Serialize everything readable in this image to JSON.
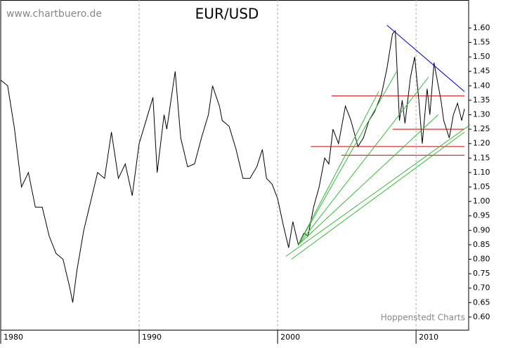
{
  "chart_data": {
    "type": "line",
    "title": "EUR/USD",
    "watermark": "www.chartbuero.de",
    "source": "Hoppenstedt Charts",
    "series": [
      {
        "name": "EUR/USD",
        "color": "#000000",
        "x": [
          1980.0,
          1980.5,
          1981.0,
          1981.5,
          1982.0,
          1982.5,
          1983.0,
          1983.5,
          1984.0,
          1984.5,
          1985.0,
          1985.2,
          1985.5,
          1986.0,
          1986.5,
          1987.0,
          1987.5,
          1988.0,
          1988.5,
          1989.0,
          1989.5,
          1990.0,
          1990.5,
          1991.0,
          1991.3,
          1991.8,
          1992.0,
          1992.6,
          1993.0,
          1993.5,
          1994.0,
          1994.5,
          1995.0,
          1995.3,
          1995.8,
          1996.0,
          1996.5,
          1997.0,
          1997.5,
          1998.0,
          1998.5,
          1998.9,
          1999.2,
          1999.6,
          2000.0,
          2000.4,
          2000.8,
          2001.1,
          2001.5,
          2001.9,
          2002.2,
          2002.6,
          2003.0,
          2003.4,
          2003.7,
          2004.0,
          2004.4,
          2004.9,
          2005.3,
          2005.8,
          2006.2,
          2006.6,
          2007.0,
          2007.5,
          2007.9,
          2008.3,
          2008.5,
          2008.8,
          2009.0,
          2009.2,
          2009.6,
          2009.9,
          2010.2,
          2010.45,
          2010.8,
          2011.0,
          2011.3,
          2011.8,
          2012.0,
          2012.4,
          2012.7,
          2013.0,
          2013.3,
          2013.5
        ],
        "values": [
          1.42,
          1.4,
          1.25,
          1.05,
          1.1,
          0.98,
          0.98,
          0.88,
          0.82,
          0.8,
          0.7,
          0.65,
          0.76,
          0.9,
          1.0,
          1.1,
          1.08,
          1.24,
          1.08,
          1.13,
          1.02,
          1.2,
          1.28,
          1.36,
          1.1,
          1.3,
          1.25,
          1.45,
          1.22,
          1.12,
          1.13,
          1.22,
          1.3,
          1.4,
          1.33,
          1.28,
          1.26,
          1.18,
          1.08,
          1.08,
          1.12,
          1.18,
          1.08,
          1.06,
          1.01,
          0.92,
          0.84,
          0.93,
          0.85,
          0.89,
          0.88,
          0.98,
          1.05,
          1.15,
          1.13,
          1.25,
          1.2,
          1.33,
          1.28,
          1.19,
          1.22,
          1.28,
          1.31,
          1.37,
          1.46,
          1.58,
          1.59,
          1.28,
          1.35,
          1.27,
          1.43,
          1.5,
          1.35,
          1.2,
          1.39,
          1.3,
          1.48,
          1.35,
          1.28,
          1.22,
          1.3,
          1.34,
          1.28,
          1.32
        ]
      }
    ],
    "trend_lines": [
      {
        "color": "#0000cc",
        "x": [
          2007.9,
          2013.5
        ],
        "y": [
          1.61,
          1.38
        ]
      },
      {
        "color": "#cc0000",
        "x": [
          2003.9,
          2013.5
        ],
        "y": [
          1.365,
          1.365
        ]
      },
      {
        "color": "#cc0000",
        "x": [
          2008.3,
          2013.5
        ],
        "y": [
          1.25,
          1.25
        ]
      },
      {
        "color": "#cc0000",
        "x": [
          2002.4,
          2013.5
        ],
        "y": [
          1.19,
          1.19
        ]
      },
      {
        "color": "#cc0000",
        "x": [
          2004.6,
          2013.5
        ],
        "y": [
          1.16,
          1.16
        ]
      },
      {
        "color": "#33bb33",
        "x": [
          2000.6,
          2013.9
        ],
        "y": [
          0.81,
          1.265
        ]
      },
      {
        "color": "#33bb33",
        "x": [
          2001.0,
          2013.5
        ],
        "y": [
          0.8,
          1.24
        ]
      },
      {
        "color": "#33bb33",
        "x": [
          2001.5,
          2007.3
        ],
        "y": [
          0.85,
          1.38
        ]
      },
      {
        "color": "#33bb33",
        "x": [
          2001.5,
          2008.6
        ],
        "y": [
          0.85,
          1.45
        ]
      },
      {
        "color": "#33bb33",
        "x": [
          2001.5,
          2010.9
        ],
        "y": [
          0.85,
          1.43
        ]
      },
      {
        "color": "#33bb33",
        "x": [
          2001.5,
          2011.6
        ],
        "y": [
          0.85,
          1.3
        ]
      }
    ],
    "xlim": [
      1980,
      2013.8
    ],
    "xticks": [
      1980,
      1990,
      2000,
      2010
    ],
    "ylim": [
      0.556,
      1.697
    ],
    "yticks": [
      {
        "value": 0.6,
        "label": "0.60"
      },
      {
        "value": 0.65,
        "label": "0.65"
      },
      {
        "value": 0.7,
        "label": "0.70"
      },
      {
        "value": 0.75,
        "label": "0.75"
      },
      {
        "value": 0.8,
        "label": "0.80"
      },
      {
        "value": 0.85,
        "label": "0.85"
      },
      {
        "value": 0.9,
        "label": "0.90"
      },
      {
        "value": 0.95,
        "label": "0.95"
      },
      {
        "value": 1.0,
        "label": "1.00"
      },
      {
        "value": 1.05,
        "label": "1.05"
      },
      {
        "value": 1.1,
        "label": "1.10"
      },
      {
        "value": 1.15,
        "label": "1.15"
      },
      {
        "value": 1.2,
        "label": "1.20"
      },
      {
        "value": 1.25,
        "label": "1.25"
      },
      {
        "value": 1.3,
        "label": "1.30"
      },
      {
        "value": 1.35,
        "label": "1.35"
      },
      {
        "value": 1.4,
        "label": "1.40"
      },
      {
        "value": 1.45,
        "label": "1.45"
      },
      {
        "value": 1.5,
        "label": "1.50"
      },
      {
        "value": 1.55,
        "label": "1.55"
      },
      {
        "value": 1.6,
        "label": "1.60"
      }
    ],
    "grid": true
  }
}
